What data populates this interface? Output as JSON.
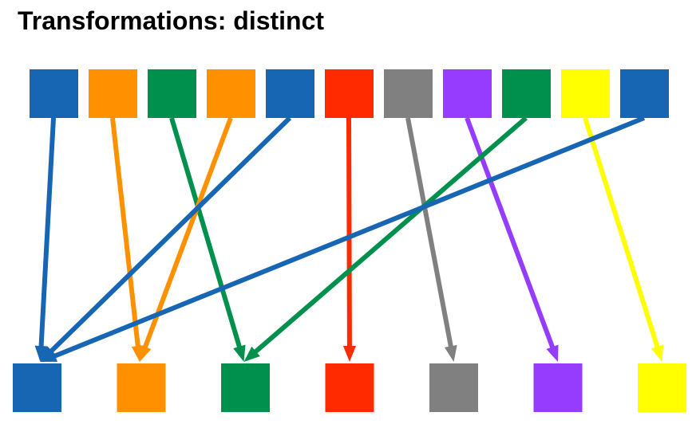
{
  "title": "Transformations: distinct",
  "colors": {
    "blue": "#1666b4",
    "orange": "#ff9100",
    "green": "#00904e",
    "red": "#ff2a00",
    "gray": "#808080",
    "purple": "#963cff",
    "yellow": "#ffff00"
  },
  "input_items": [
    "blue",
    "orange",
    "green",
    "orange",
    "blue",
    "red",
    "gray",
    "purple",
    "green",
    "yellow",
    "blue"
  ],
  "output_items": [
    "blue",
    "orange",
    "green",
    "red",
    "gray",
    "purple",
    "yellow"
  ]
}
